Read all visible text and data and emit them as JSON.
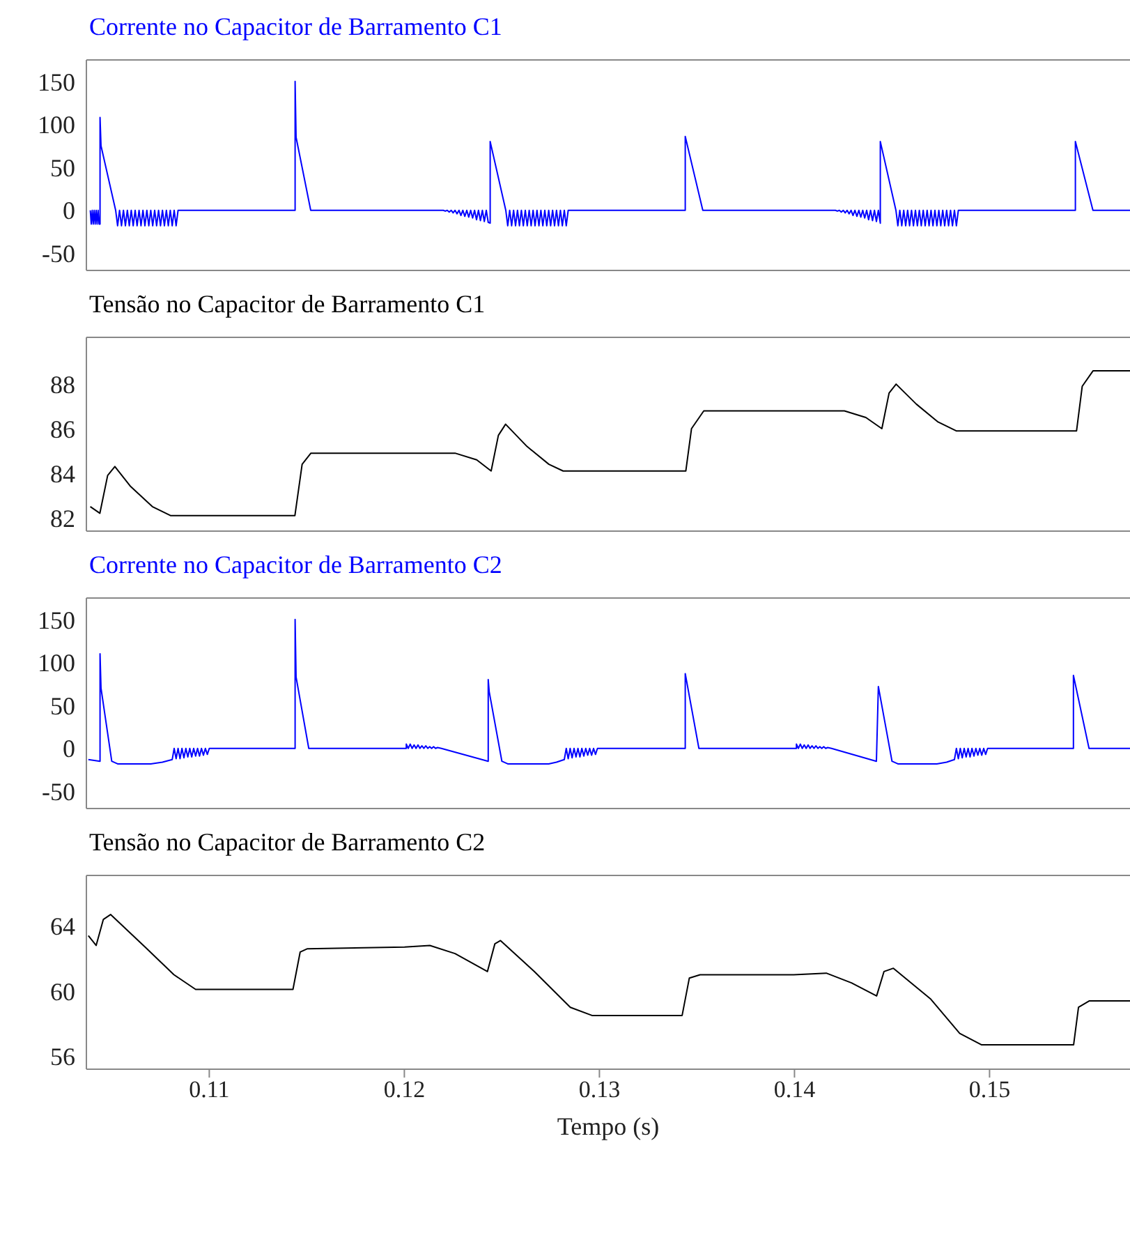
{
  "chart_data": [
    {
      "type": "line",
      "title": "Corrente no Capacitor de Barramento C1",
      "xlim": [
        0.1037,
        0.1572
      ],
      "ylim": [
        -70,
        175
      ],
      "yticks": [
        -50,
        0,
        50,
        100,
        150
      ],
      "tick_labels": "y",
      "x": [
        0.1039,
        0.10395,
        0.104,
        0.10405,
        0.1041,
        0.10415,
        0.1042,
        0.10425,
        0.1043,
        0.10435,
        0.1044,
        0.1044,
        0.10445,
        0.1052,
        0.1053,
        0.1054,
        0.1055,
        0.1056,
        0.1057,
        0.1058,
        0.1059,
        0.106,
        0.1061,
        0.1062,
        0.1063,
        0.1064,
        0.1065,
        0.1066,
        0.1067,
        0.1068,
        0.1069,
        0.107,
        0.1071,
        0.1072,
        0.1073,
        0.1074,
        0.1075,
        0.1076,
        0.1077,
        0.1078,
        0.1079,
        0.108,
        0.1081,
        0.1082,
        0.1083,
        0.1084,
        0.1144,
        0.1144,
        0.11445,
        0.1152,
        0.122,
        0.1221,
        0.1222,
        0.1223,
        0.1224,
        0.1225,
        0.1226,
        0.1227,
        0.1228,
        0.1229,
        0.123,
        0.1231,
        0.1232,
        0.1233,
        0.1234,
        0.1235,
        0.1236,
        0.1237,
        0.1238,
        0.1239,
        0.124,
        0.1241,
        0.1242,
        0.1243,
        0.1244,
        0.1244,
        0.1252,
        0.1253,
        0.1254,
        0.1255,
        0.1256,
        0.1257,
        0.1258,
        0.1259,
        0.126,
        0.1261,
        0.1262,
        0.1263,
        0.1264,
        0.1265,
        0.1266,
        0.1267,
        0.1268,
        0.1269,
        0.127,
        0.1271,
        0.1272,
        0.1273,
        0.1274,
        0.1275,
        0.1276,
        0.1277,
        0.1278,
        0.1279,
        0.128,
        0.1281,
        0.1282,
        0.1283,
        0.1284,
        0.1344,
        0.1344,
        0.1353,
        0.1421,
        0.1422,
        0.1423,
        0.1424,
        0.1425,
        0.1426,
        0.1427,
        0.1428,
        0.1429,
        0.143,
        0.1431,
        0.1432,
        0.1433,
        0.1434,
        0.1435,
        0.1436,
        0.1437,
        0.1438,
        0.1439,
        0.144,
        0.1441,
        0.1442,
        0.1443,
        0.1444,
        0.1444,
        0.1452,
        0.1453,
        0.1454,
        0.1455,
        0.1456,
        0.1457,
        0.1458,
        0.1459,
        0.146,
        0.1461,
        0.1462,
        0.1463,
        0.1464,
        0.1465,
        0.1466,
        0.1467,
        0.1468,
        0.1469,
        0.147,
        0.1471,
        0.1472,
        0.1473,
        0.1474,
        0.1475,
        0.1476,
        0.1477,
        0.1478,
        0.1479,
        0.148,
        0.1481,
        0.1482,
        0.1483,
        0.1484,
        0.1544,
        0.1544,
        0.1553,
        0.1572
      ],
      "series": [
        {
          "color": "#0000ff",
          "values": [
            0,
            -16,
            0,
            -16,
            0,
            -16,
            0,
            -16,
            0,
            -16,
            -16,
            108,
            75,
            0,
            -18,
            0,
            -18,
            0,
            -18,
            0,
            -18,
            0,
            -18,
            0,
            -18,
            0,
            -18,
            0,
            -18,
            0,
            -18,
            0,
            -18,
            0,
            -18,
            0,
            -18,
            0,
            -18,
            0,
            -18,
            0,
            -18,
            0,
            -18,
            0,
            0,
            150,
            85,
            0,
            0,
            -1,
            0,
            -2,
            0,
            -3,
            0,
            -4,
            0,
            -6,
            0,
            -7,
            0,
            -8,
            0,
            -9,
            0,
            -11,
            0,
            -12,
            0,
            -13,
            0,
            -14,
            -15,
            80,
            0,
            -18,
            0,
            -18,
            0,
            -18,
            0,
            -18,
            0,
            -18,
            0,
            -18,
            0,
            -18,
            0,
            -18,
            0,
            -18,
            0,
            -18,
            0,
            -18,
            0,
            -18,
            0,
            -18,
            0,
            -18,
            0,
            -18,
            0,
            -18,
            0,
            0,
            86,
            0,
            0,
            -1,
            0,
            -2,
            0,
            -3,
            0,
            -4,
            0,
            -6,
            0,
            -7,
            0,
            -8,
            0,
            -9,
            0,
            -11,
            0,
            -12,
            0,
            -13,
            0,
            -15,
            80,
            0,
            -18,
            0,
            -18,
            0,
            -18,
            0,
            -18,
            0,
            -18,
            0,
            -18,
            0,
            -18,
            0,
            -18,
            0,
            -18,
            0,
            -18,
            0,
            -18,
            0,
            -18,
            0,
            -18,
            0,
            -18,
            0,
            -18,
            0,
            -18,
            0,
            0,
            80,
            0,
            0
          ]
        }
      ]
    },
    {
      "type": "line",
      "title": "Tensão no Capacitor de Barramento C1",
      "xlim": [
        0.1037,
        0.1572
      ],
      "ylim": [
        81.4,
        90.1
      ],
      "yticks": [
        82,
        84,
        86,
        88
      ],
      "tick_labels": "y",
      "x": [
        0.1039,
        0.10439,
        0.10479,
        0.10516,
        0.10597,
        0.10708,
        0.10801,
        0.11439,
        0.11476,
        0.11521,
        0.1226,
        0.12371,
        0.12445,
        0.12482,
        0.12519,
        0.12629,
        0.12741,
        0.12814,
        0.13443,
        0.13472,
        0.13535,
        0.14256,
        0.14366,
        0.14448,
        0.14485,
        0.14521,
        0.14625,
        0.14736,
        0.14829,
        0.15446,
        0.15475,
        0.15531,
        0.1572
      ],
      "series": [
        {
          "color": "#000000",
          "values": [
            82.5,
            82.2,
            83.9,
            84.3,
            83.4,
            82.5,
            82.1,
            82.1,
            84.4,
            84.9,
            84.9,
            84.6,
            84.1,
            85.7,
            86.2,
            85.2,
            84.4,
            84.1,
            84.1,
            86.0,
            86.8,
            86.8,
            86.5,
            86.0,
            87.6,
            88.0,
            87.1,
            86.3,
            85.9,
            85.9,
            87.9,
            88.6,
            88.6
          ]
        }
      ]
    },
    {
      "type": "line",
      "title": "Corrente no Capacitor de Barramento C2",
      "xlim": [
        0.1037,
        0.1572
      ],
      "ylim": [
        -70,
        175
      ],
      "yticks": [
        -50,
        0,
        50,
        100,
        150
      ],
      "tick_labels": "y",
      "x": [
        0.1038,
        0.1044,
        0.1044,
        0.10445,
        0.105,
        0.1053,
        0.107,
        0.1076,
        0.1081,
        0.1082,
        0.1083,
        0.1084,
        0.1085,
        0.1086,
        0.1087,
        0.1088,
        0.1089,
        0.109,
        0.1091,
        0.1092,
        0.1093,
        0.1094,
        0.1095,
        0.1096,
        0.1097,
        0.1098,
        0.1099,
        0.11,
        0.1144,
        0.1144,
        0.11445,
        0.1151,
        0.1201,
        0.1201,
        0.1202,
        0.1203,
        0.1204,
        0.1205,
        0.1206,
        0.1207,
        0.1208,
        0.1209,
        0.121,
        0.1211,
        0.1212,
        0.1213,
        0.1214,
        0.1215,
        0.1216,
        0.1217,
        0.1219,
        0.1243,
        0.1243,
        0.12435,
        0.125,
        0.1253,
        0.1274,
        0.1278,
        0.1282,
        0.1283,
        0.1284,
        0.1285,
        0.1286,
        0.1287,
        0.1288,
        0.1289,
        0.129,
        0.1291,
        0.1292,
        0.1293,
        0.1294,
        0.1295,
        0.1296,
        0.1297,
        0.1298,
        0.1299,
        0.1344,
        0.1344,
        0.1351,
        0.1401,
        0.1401,
        0.1402,
        0.1403,
        0.1404,
        0.1405,
        0.1406,
        0.1407,
        0.1408,
        0.1409,
        0.141,
        0.1411,
        0.1412,
        0.1413,
        0.1414,
        0.1415,
        0.1416,
        0.1417,
        0.1419,
        0.1442,
        0.1443,
        0.145,
        0.1453,
        0.1473,
        0.1478,
        0.1482,
        0.1483,
        0.1484,
        0.1485,
        0.1486,
        0.1487,
        0.1488,
        0.1489,
        0.149,
        0.1491,
        0.1492,
        0.1493,
        0.1494,
        0.1495,
        0.1496,
        0.1497,
        0.1498,
        0.1499,
        0.1543,
        0.1543,
        0.1551,
        0.1572
      ],
      "series": [
        {
          "color": "#0000ff",
          "values": [
            -13,
            -15,
            110,
            70,
            -15,
            -18,
            -18,
            -16,
            -13,
            0,
            -12,
            0,
            -12,
            0,
            -11,
            0,
            -10,
            0,
            -10,
            0,
            -9,
            0,
            -9,
            0,
            -8,
            0,
            -7,
            0,
            0,
            150,
            83,
            0,
            0,
            5,
            0,
            5,
            0,
            4,
            0,
            4,
            0,
            3,
            0,
            3,
            0,
            2,
            0,
            2,
            0,
            1,
            0,
            -15,
            80,
            66,
            -15,
            -18,
            -18,
            -16,
            -13,
            0,
            -12,
            0,
            -11,
            0,
            -10,
            0,
            -10,
            0,
            -9,
            0,
            -8,
            0,
            -8,
            0,
            -7,
            0,
            0,
            87,
            0,
            0,
            5,
            0,
            5,
            0,
            4,
            0,
            4,
            0,
            3,
            0,
            3,
            0,
            2,
            0,
            2,
            0,
            1,
            0,
            -15,
            72,
            -15,
            -18,
            -18,
            -16,
            -13,
            0,
            -12,
            0,
            -11,
            0,
            -10,
            0,
            -10,
            0,
            -9,
            0,
            -8,
            0,
            -8,
            0,
            -7,
            0,
            0,
            85,
            0,
            0
          ]
        }
      ]
    },
    {
      "type": "line",
      "title": "Tensão no Capacitor de Barramento C2",
      "xlabel": "Tempo (s)",
      "xlim": [
        0.1037,
        0.1572
      ],
      "xticks": [
        0.11,
        0.12,
        0.13,
        0.14,
        0.15
      ],
      "ylim": [
        55.2,
        67.1
      ],
      "yticks": [
        56,
        60,
        64
      ],
      "x": [
        0.1038,
        0.1042,
        0.10457,
        0.10494,
        0.10671,
        0.10819,
        0.1093,
        0.11429,
        0.11466,
        0.11503,
        0.12001,
        0.12131,
        0.1226,
        0.12426,
        0.12464,
        0.12493,
        0.12666,
        0.12851,
        0.12962,
        0.13424,
        0.13461,
        0.13516,
        0.13996,
        0.14163,
        0.14292,
        0.14421,
        0.14459,
        0.14507,
        0.14699,
        0.14847,
        0.14958,
        0.15431,
        0.15456,
        0.15512,
        0.1572
      ],
      "series": [
        {
          "color": "#000000",
          "values": [
            63.4,
            62.8,
            64.4,
            64.7,
            62.7,
            61.0,
            60.1,
            60.1,
            62.4,
            62.6,
            62.7,
            62.8,
            62.3,
            61.2,
            62.9,
            63.1,
            61.2,
            59.0,
            58.5,
            58.5,
            60.8,
            61.0,
            61.0,
            61.1,
            60.5,
            59.7,
            61.2,
            61.4,
            59.5,
            57.4,
            56.7,
            56.7,
            59.0,
            59.4,
            59.4
          ]
        }
      ]
    }
  ]
}
